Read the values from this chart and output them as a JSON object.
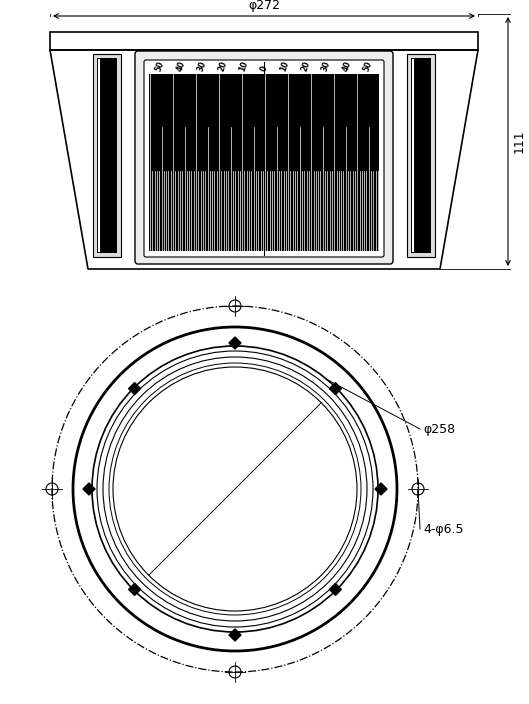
{
  "bg_color": "#ffffff",
  "line_color": "#000000",
  "fig_width": 5.29,
  "fig_height": 7.04,
  "dpi": 100,
  "top_view": {
    "dim_label_phi272": "φ272",
    "dim_label_111": "111"
  },
  "bottom_view": {
    "dim_label_phi258": "φ258",
    "dim_label_holes": "4-φ6.5"
  },
  "scale_labels": [
    "50",
    "40",
    "30",
    "20",
    "10",
    "0",
    "10",
    "20",
    "30",
    "40",
    "50"
  ]
}
